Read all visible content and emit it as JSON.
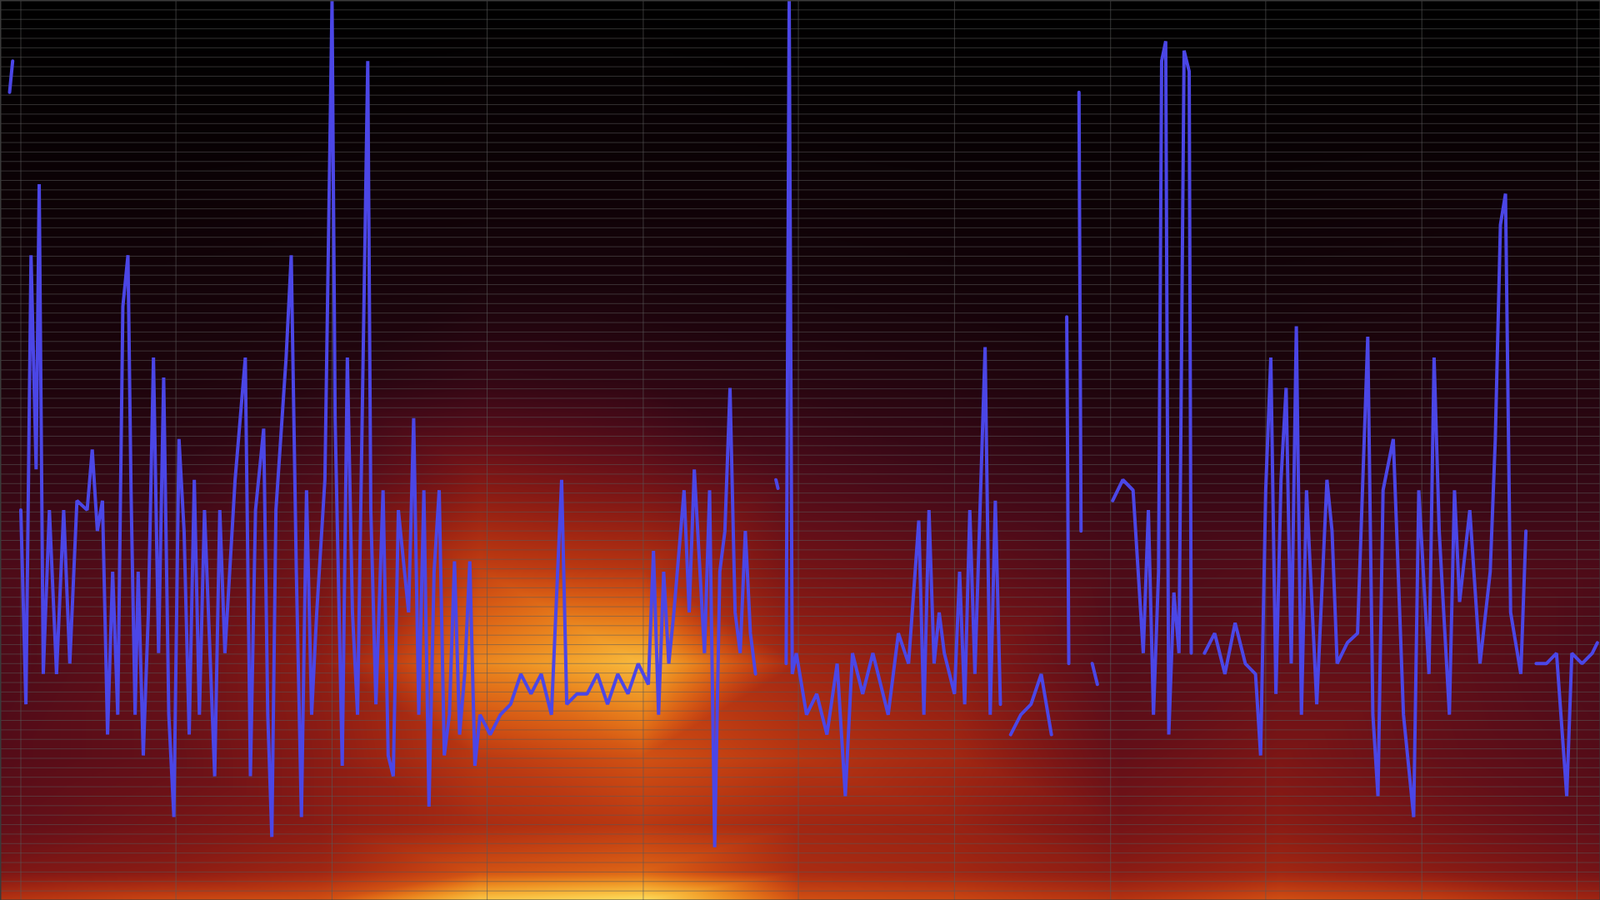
{
  "chart_data": {
    "type": "line",
    "color": "#4b46e6",
    "grid": true,
    "tick_labels": false,
    "xlim": [
      0,
      1568
    ],
    "xticks": [
      20,
      172,
      325,
      477,
      630,
      782,
      935,
      1088,
      1240,
      1393,
      1545
    ],
    "ylim": [
      0,
      95
    ],
    "yticks": [
      0,
      1,
      2,
      3,
      4,
      5,
      6,
      7,
      8,
      9,
      10,
      11,
      12,
      13,
      14,
      15,
      16,
      17,
      18,
      19,
      20,
      21,
      22,
      23,
      24,
      25,
      26,
      27,
      28,
      29,
      30,
      31,
      32,
      33,
      34,
      35,
      36,
      37,
      38,
      39,
      40,
      41,
      42,
      43,
      44,
      45,
      46,
      47,
      48,
      49,
      50,
      51,
      52,
      53,
      54,
      55,
      56,
      57,
      58,
      59,
      60,
      61,
      62,
      63,
      64,
      65,
      66,
      67,
      68,
      69,
      70,
      71,
      72,
      73,
      74,
      75,
      76,
      77,
      78,
      79,
      80,
      81,
      82,
      83,
      84,
      85,
      86,
      87,
      88,
      89,
      90,
      91,
      92,
      93,
      94,
      95
    ],
    "x": [
      9,
      12,
      16,
      20,
      25,
      30,
      35,
      38,
      42,
      48,
      55,
      62,
      68,
      75,
      85,
      90,
      95,
      100,
      105,
      110,
      115,
      120,
      125,
      128,
      132,
      135,
      140,
      145,
      150,
      155,
      160,
      165,
      170,
      175,
      180,
      185,
      190,
      195,
      200,
      210,
      215,
      220,
      230,
      240,
      245,
      250,
      258,
      262,
      266,
      270,
      280,
      285,
      290,
      295,
      300,
      305,
      310,
      318,
      325,
      328,
      335,
      340,
      345,
      350,
      355,
      360,
      363,
      368,
      375,
      380,
      385,
      390,
      400,
      405,
      410,
      415,
      420,
      425,
      430,
      435,
      440,
      445,
      450,
      455,
      460,
      465,
      470,
      480,
      490,
      500,
      510,
      520,
      530,
      540,
      550,
      555,
      565,
      575,
      585,
      595,
      605,
      615,
      625,
      635,
      640,
      645,
      650,
      655,
      660,
      670,
      675,
      680,
      690,
      695,
      700,
      705,
      710,
      715,
      720,
      725,
      730,
      735,
      740,
      750,
      760,
      762,
      766,
      770,
      773,
      776,
      780,
      790,
      800,
      810,
      820,
      828,
      835,
      845,
      855,
      870,
      880,
      890,
      900,
      905,
      910,
      915,
      920,
      925,
      935,
      940,
      945,
      950,
      955,
      965,
      970,
      975,
      980,
      985,
      990,
      1000,
      1010,
      1020,
      1030,
      1038,
      1045,
      1047,
      1052,
      1057,
      1059,
      1064,
      1070,
      1075,
      1083,
      1090,
      1100,
      1110,
      1120,
      1125,
      1130,
      1135,
      1138,
      1142,
      1145,
      1150,
      1155,
      1160,
      1165,
      1167,
      1173,
      1180,
      1190,
      1200,
      1210,
      1220,
      1230,
      1235,
      1240,
      1245,
      1250,
      1255,
      1260,
      1265,
      1270,
      1275,
      1280,
      1290,
      1300,
      1305,
      1310,
      1320,
      1330,
      1340,
      1345,
      1350,
      1355,
      1365,
      1375,
      1385,
      1390,
      1400,
      1405,
      1410,
      1420,
      1425,
      1430,
      1440,
      1450,
      1460,
      1465,
      1470,
      1475,
      1480,
      1490,
      1495,
      1500,
      1505,
      1515,
      1525,
      1535,
      1540,
      1550,
      1560,
      1565
    ],
    "values": [
      85.3,
      88.6,
      null,
      41.2,
      20.7,
      68.1,
      45.5,
      75.6,
      23.9,
      41.2,
      23.9,
      41.2,
      25.0,
      42.2,
      41.2,
      47.6,
      39.0,
      42.2,
      17.5,
      34.7,
      19.6,
      62.7,
      68.1,
      43.3,
      19.6,
      34.7,
      15.3,
      30.4,
      57.3,
      26.1,
      55.2,
      19.6,
      8.8,
      48.7,
      39.0,
      17.5,
      44.4,
      19.6,
      41.2,
      13.1,
      41.2,
      26.1,
      44.4,
      57.3,
      13.1,
      41.2,
      49.8,
      19.6,
      6.7,
      41.2,
      57.3,
      68.1,
      34.7,
      8.8,
      43.3,
      19.6,
      30.4,
      44.4,
      95.0,
      50.9,
      14.2,
      57.3,
      30.4,
      19.6,
      54.1,
      88.6,
      41.2,
      20.7,
      43.3,
      15.3,
      13.1,
      41.2,
      30.4,
      50.9,
      19.6,
      43.3,
      9.9,
      34.7,
      43.3,
      15.3,
      19.6,
      35.8,
      17.5,
      23.9,
      35.8,
      14.2,
      19.6,
      17.5,
      19.6,
      20.7,
      23.9,
      21.8,
      23.9,
      19.6,
      44.4,
      20.7,
      21.8,
      21.8,
      23.9,
      20.7,
      23.9,
      21.8,
      25.0,
      22.8,
      36.9,
      19.6,
      34.7,
      25.0,
      30.4,
      43.3,
      30.4,
      45.5,
      26.1,
      43.3,
      5.6,
      34.7,
      39.0,
      54.1,
      30.4,
      26.1,
      39.0,
      28.2,
      23.9,
      null,
      44.4,
      43.5,
      null,
      25.0,
      95.0,
      23.9,
      26.1,
      19.6,
      21.8,
      17.5,
      25.0,
      11.0,
      26.1,
      21.8,
      26.1,
      19.6,
      28.2,
      25.0,
      40.1,
      19.6,
      41.2,
      25.0,
      30.4,
      26.1,
      21.8,
      34.7,
      20.7,
      41.2,
      23.9,
      58.4,
      19.6,
      42.2,
      20.7,
      null,
      17.5,
      19.6,
      20.7,
      23.9,
      17.5,
      null,
      61.6,
      25.0,
      null,
      85.3,
      39.0,
      null,
      25.0,
      22.8,
      null,
      42.2,
      44.4,
      43.3,
      26.1,
      41.2,
      19.6,
      34.7,
      88.6,
      90.7,
      17.5,
      32.5,
      26.1,
      89.7,
      87.5,
      26.1,
      null,
      26.1,
      28.2,
      23.9,
      29.3,
      25.0,
      23.9,
      15.3,
      43.3,
      57.3,
      21.8,
      44.4,
      54.1,
      25.0,
      60.6,
      19.6,
      43.3,
      20.7,
      44.4,
      39.0,
      25.0,
      27.2,
      28.2,
      59.5,
      19.6,
      11.0,
      43.3,
      48.7,
      19.6,
      8.8,
      43.3,
      23.9,
      57.3,
      39.0,
      19.6,
      43.3,
      31.5,
      41.2,
      25.0,
      34.7,
      48.7,
      71.3,
      74.6,
      30.4,
      23.9,
      39.0,
      null,
      25.0,
      25.0,
      26.1,
      11.0,
      26.1,
      25.0,
      26.1,
      27.2
    ],
    "spectrogram": {
      "x": [
        0,
        157,
        314,
        470,
        627,
        784,
        941,
        1098,
        1254,
        1411,
        1568
      ],
      "y": [
        0,
        3,
        8,
        15,
        25,
        35,
        45,
        55,
        65,
        75,
        85,
        95
      ],
      "values": [
        [
          0.55,
          0.6,
          0.62,
          0.85,
          0.9,
          0.62,
          0.6,
          0.55,
          0.62,
          0.58,
          0.5
        ],
        [
          0.42,
          0.45,
          0.5,
          0.62,
          0.66,
          0.52,
          0.5,
          0.45,
          0.5,
          0.45,
          0.4
        ],
        [
          0.35,
          0.4,
          0.45,
          0.52,
          0.56,
          0.5,
          0.48,
          0.4,
          0.45,
          0.4,
          0.35
        ],
        [
          0.32,
          0.36,
          0.45,
          0.56,
          0.62,
          0.55,
          0.5,
          0.36,
          0.42,
          0.36,
          0.32
        ],
        [
          0.3,
          0.36,
          0.46,
          0.72,
          0.82,
          0.5,
          0.45,
          0.32,
          0.36,
          0.35,
          0.3
        ],
        [
          0.3,
          0.32,
          0.4,
          0.58,
          0.55,
          0.4,
          0.36,
          0.3,
          0.32,
          0.32,
          0.3
        ],
        [
          0.22,
          0.22,
          0.3,
          0.42,
          0.38,
          0.3,
          0.26,
          0.22,
          0.22,
          0.22,
          0.22
        ],
        [
          0.14,
          0.14,
          0.17,
          0.22,
          0.2,
          0.18,
          0.16,
          0.14,
          0.14,
          0.16,
          0.16
        ],
        [
          0.1,
          0.1,
          0.11,
          0.12,
          0.12,
          0.11,
          0.1,
          0.1,
          0.1,
          0.11,
          0.11
        ],
        [
          0.07,
          0.07,
          0.08,
          0.08,
          0.08,
          0.08,
          0.07,
          0.07,
          0.07,
          0.08,
          0.08
        ],
        [
          0.04,
          0.04,
          0.04,
          0.05,
          0.05,
          0.04,
          0.04,
          0.04,
          0.04,
          0.04,
          0.04
        ],
        [
          0.02,
          0.02,
          0.02,
          0.02,
          0.02,
          0.02,
          0.02,
          0.02,
          0.02,
          0.02,
          0.02
        ]
      ]
    }
  }
}
